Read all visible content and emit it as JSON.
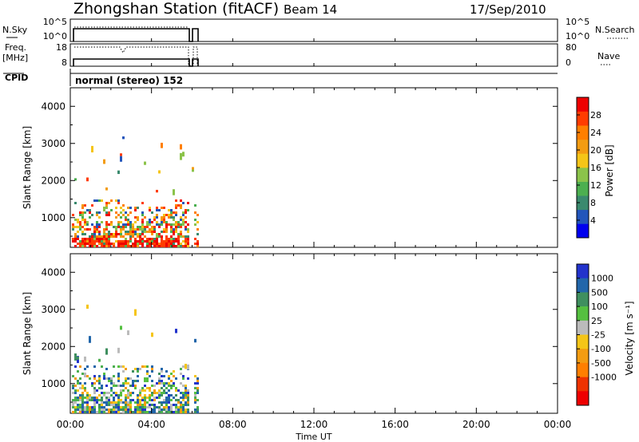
{
  "header": {
    "title": "Zhongshan Station (fitACF)",
    "beam": "Beam 14",
    "date": "17/Sep/2010"
  },
  "top_panels": {
    "nsky": {
      "label": "N.Sky",
      "ticks": [
        "10^5",
        "10^0"
      ],
      "right_ticks": [
        "10^5",
        "10^0"
      ],
      "right_label": "N.Search"
    },
    "freq": {
      "label_line1": "Freq.",
      "label_line2": "[MHz]",
      "ticks": [
        "18",
        "8"
      ],
      "right_ticks": [
        "80",
        "0"
      ],
      "right_label": "Nave"
    },
    "cpid": {
      "label": "CPID",
      "value": "normal (stereo) 152"
    }
  },
  "axes": {
    "ylabel": "Slant Range [km]",
    "xlabel": "Time UT",
    "yticks": [
      "4000",
      "3000",
      "2000",
      "1000"
    ],
    "xticks": [
      "00:00",
      "04:00",
      "08:00",
      "12:00",
      "16:00",
      "20:00",
      "00:00"
    ]
  },
  "power_scale": {
    "label": "Power [dB]",
    "ticks": [
      "28",
      "24",
      "20",
      "16",
      "12",
      "8",
      "4"
    ],
    "colors": [
      "#0000ee",
      "#2255bb",
      "#3a8a6e",
      "#4caf50",
      "#8bc34a",
      "#f5c518",
      "#f39c12",
      "#ff7f00",
      "#ff3c00",
      "#ee0000"
    ]
  },
  "velocity_scale": {
    "label": "Velocity [m s⁻¹]",
    "ticks": [
      "1000",
      "500",
      "100",
      "25",
      "-25",
      "-100",
      "-500",
      "-1000"
    ],
    "colors": [
      "#2233cc",
      "#2266aa",
      "#3f8f5f",
      "#55c040",
      "#bbbbbb",
      "#f5c518",
      "#f39c12",
      "#ff7f00",
      "#ee3300",
      "#ee0000"
    ]
  },
  "chart_data": {
    "type": "heatmap",
    "title": "Zhongshan Station (fitACF)",
    "xlabel": "Time UT",
    "ylabel": "Slant Range [km]",
    "xlim": [
      "00:00",
      "24:00"
    ],
    "ylim": [
      200,
      4500
    ],
    "data_coverage_ut": [
      "00:00",
      "06:15"
    ],
    "panels": [
      {
        "parameter": "Power",
        "unit": "dB",
        "scale_range": [
          0,
          32
        ]
      },
      {
        "parameter": "Velocity",
        "unit": "m s-1",
        "scale_range": [
          -1000,
          1000
        ]
      }
    ]
  }
}
